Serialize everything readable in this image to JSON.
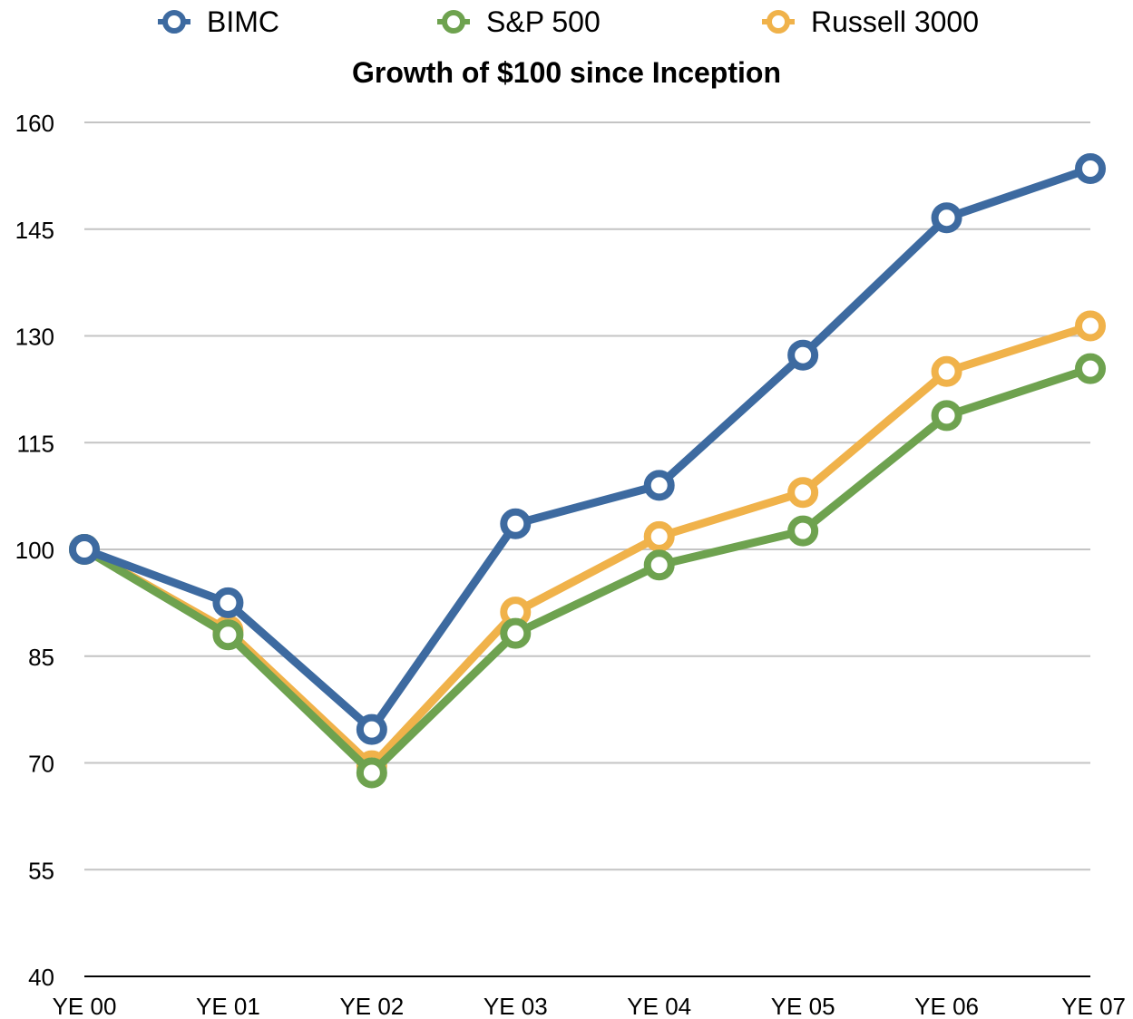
{
  "chart_data": {
    "type": "line",
    "title": "Growth of $100 since Inception",
    "xlabel": "",
    "ylabel": "",
    "categories": [
      "YE 00",
      "YE 01",
      "YE 02",
      "YE 03",
      "YE 04",
      "YE 05",
      "YE 06",
      "YE 07"
    ],
    "ylim": [
      40,
      160
    ],
    "yticks": [
      40,
      55,
      70,
      85,
      100,
      115,
      130,
      145,
      160
    ],
    "grid": true,
    "legend_position": "top",
    "series": [
      {
        "name": "BIMC",
        "color": "#3d6aa0",
        "values": [
          100,
          92.5,
          74.7,
          103.6,
          109,
          127.3,
          146.6,
          153.5
        ]
      },
      {
        "name": "S&P 500",
        "color": "#6ea24f",
        "values": [
          100,
          88,
          68.6,
          88.2,
          97.8,
          102.6,
          118.8,
          125.4
        ]
      },
      {
        "name": "Russell 3000",
        "color": "#f0b24a",
        "values": [
          100,
          88.6,
          69.6,
          91.2,
          101.8,
          108,
          125,
          131.4
        ]
      }
    ]
  }
}
